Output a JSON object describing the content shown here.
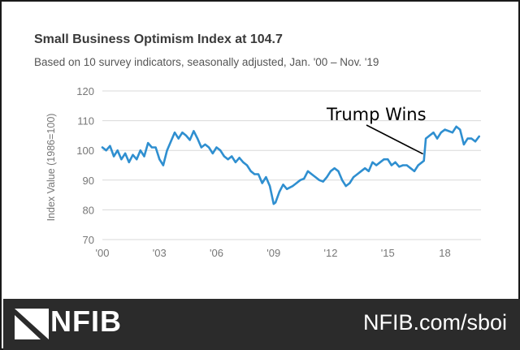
{
  "title": "Small Business Optimism Index at 104.7",
  "subtitle": "Based on 10 survey indicators, seasonally adjusted, Jan. '00 – Nov. '19",
  "footer": {
    "logo_text": "NFIB",
    "url": "NFIB.com/sboi",
    "background": "#2b2b2b"
  },
  "colors": {
    "line": "#2f8fd0",
    "grid": "#d9d9d9",
    "axis_text": "#777777",
    "annotation": "#000000"
  },
  "chart_data": {
    "type": "line",
    "title": "Small Business Optimism Index at 104.7",
    "subtitle": "Based on 10 survey indicators, seasonally adjusted, Jan. '00 – Nov. '19",
    "xlabel": "",
    "ylabel": "Index Value (1986=100)",
    "xlim": [
      2000.0,
      2019.9
    ],
    "ylim": [
      70,
      120
    ],
    "yticks": [
      70,
      80,
      90,
      100,
      110,
      120
    ],
    "xticks": [
      {
        "value": 2000,
        "label": "'00"
      },
      {
        "value": 2003,
        "label": "'03"
      },
      {
        "value": 2006,
        "label": "'06"
      },
      {
        "value": 2009,
        "label": "'09"
      },
      {
        "value": 2012,
        "label": "'12"
      },
      {
        "value": 2015,
        "label": "'15"
      },
      {
        "value": 2018,
        "label": "18"
      }
    ],
    "grid": true,
    "annotation": {
      "text": "Trump Wins",
      "x": 2016.85,
      "y": 98.8
    },
    "series": [
      {
        "x": [
          2000.0,
          2000.2,
          2000.4,
          2000.6,
          2000.8,
          2001.0,
          2001.2,
          2001.4,
          2001.6,
          2001.8,
          2002.0,
          2002.2,
          2002.4,
          2002.6,
          2002.8,
          2003.0,
          2003.2,
          2003.4,
          2003.6,
          2003.8,
          2004.0,
          2004.2,
          2004.4,
          2004.6,
          2004.8,
          2005.0,
          2005.2,
          2005.4,
          2005.6,
          2005.8,
          2006.0,
          2006.2,
          2006.4,
          2006.6,
          2006.8,
          2007.0,
          2007.2,
          2007.4,
          2007.6,
          2007.8,
          2008.0,
          2008.2,
          2008.4,
          2008.6,
          2008.8,
          2009.0,
          2009.1,
          2009.3,
          2009.5,
          2009.7,
          2010.0,
          2010.2,
          2010.4,
          2010.6,
          2010.8,
          2011.0,
          2011.2,
          2011.4,
          2011.6,
          2011.8,
          2012.0,
          2012.2,
          2012.4,
          2012.6,
          2012.8,
          2013.0,
          2013.2,
          2013.4,
          2013.6,
          2013.8,
          2014.0,
          2014.2,
          2014.4,
          2014.6,
          2014.8,
          2015.0,
          2015.2,
          2015.4,
          2015.6,
          2015.8,
          2016.0,
          2016.2,
          2016.4,
          2016.6,
          2016.8,
          2016.9,
          2017.0,
          2017.2,
          2017.4,
          2017.6,
          2017.8,
          2018.0,
          2018.2,
          2018.4,
          2018.6,
          2018.8,
          2019.0,
          2019.2,
          2019.4,
          2019.6,
          2019.8
        ],
        "y": [
          101,
          100,
          101.5,
          98,
          100,
          97,
          99,
          96,
          98.5,
          97,
          100,
          98,
          102.5,
          101,
          101,
          97,
          95,
          100,
          103,
          106,
          104,
          106,
          105,
          103.5,
          106.5,
          104,
          101,
          102,
          101,
          99,
          101,
          100,
          98,
          97,
          98,
          96,
          97.5,
          96,
          95,
          93,
          92,
          92,
          89,
          91,
          88,
          82,
          82.5,
          86,
          88.5,
          87,
          88,
          89,
          90,
          90.5,
          93,
          92,
          91,
          90,
          89.5,
          91,
          93,
          94,
          93,
          90,
          88,
          89,
          91,
          92,
          93,
          94,
          93,
          96,
          95,
          96,
          97,
          97,
          95,
          96,
          94.5,
          95,
          95,
          94,
          93,
          95,
          96,
          96.5,
          104,
          105,
          106,
          104,
          106,
          107,
          106.5,
          106,
          108,
          107,
          102,
          104,
          104,
          103,
          104.7
        ]
      }
    ]
  }
}
